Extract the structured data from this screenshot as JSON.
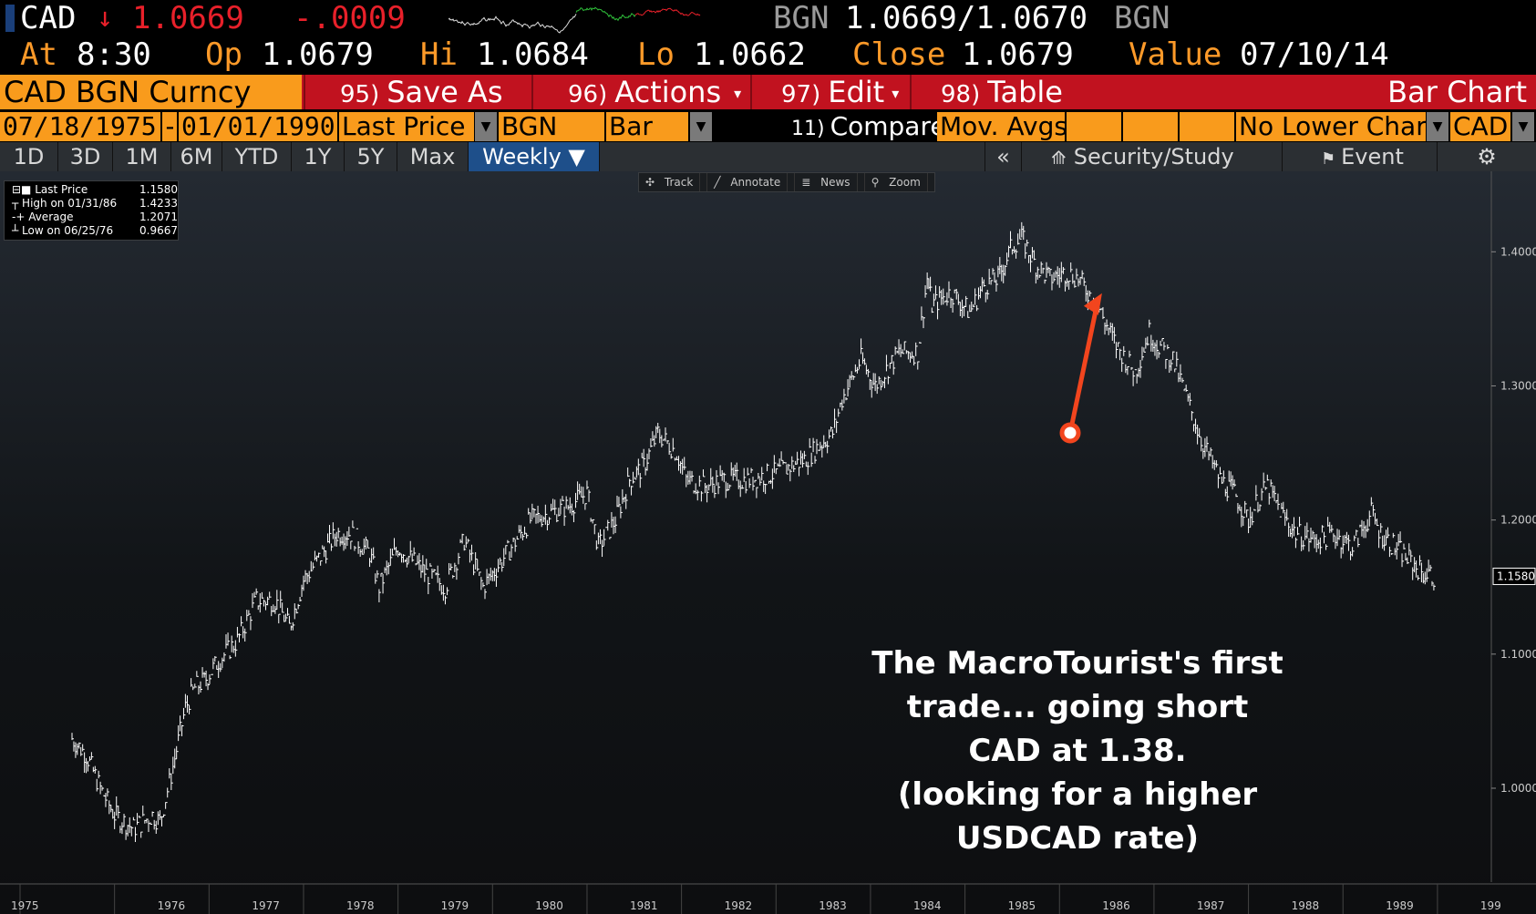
{
  "header": {
    "ticker": "CAD",
    "arrow": "↓",
    "price": "1.0669",
    "change": "-.0009",
    "source_left": "BGN",
    "bid_ask": "1.0669/1.0670",
    "source_right": "BGN"
  },
  "quote": {
    "at_label": "At",
    "at_value": "8:30",
    "open_label": "Op",
    "open_value": "1.0679",
    "high_label": "Hi",
    "high_value": "1.0684",
    "low_label": "Lo",
    "low_value": "1.0662",
    "close_label": "Close",
    "close_value": "1.0679",
    "value_label": "Value",
    "value_date": "07/10/14"
  },
  "commands": {
    "security": "CAD BGN Curncy",
    "save_num": "95)",
    "save_label": "Save As",
    "actions_num": "96)",
    "actions_label": "Actions",
    "edit_num": "97)",
    "edit_label": "Edit",
    "table_num": "98)",
    "table_label": "Table",
    "view_title": "Bar Chart"
  },
  "inputs": {
    "start_date": "07/18/1975",
    "end_date": "01/01/1990",
    "field": "Last Price",
    "source": "BGN",
    "style": "Bar",
    "compare_num": "11)",
    "compare_label": "Compare",
    "mov_avgs": "Mov. Avgs",
    "lower_chart": "No Lower Char",
    "currency": "CAD"
  },
  "periods": {
    "tabs": [
      "1D",
      "3D",
      "1M",
      "6M",
      "YTD",
      "1Y",
      "5Y",
      "Max",
      "Weekly ▼"
    ],
    "selected": "Weekly ▼",
    "collapse": "«",
    "security_study": "Security/Study",
    "event": "Event"
  },
  "toolbar": {
    "track": "Track",
    "annotate": "Annotate",
    "news": "News",
    "zoom": "Zoom"
  },
  "legend": {
    "last_label": "Last Price",
    "last_value": "1.1580",
    "high_label": "High on 01/31/86",
    "high_value": "1.4233",
    "avg_label": "Average",
    "avg_value": "1.2071",
    "low_label": "Low on 06/25/76",
    "low_value": "0.9667"
  },
  "annotation": {
    "lines": [
      "The MacroTourist's first",
      "trade...  going short",
      "CAD at 1.38.",
      "(looking for a higher",
      "USDCAD rate)"
    ]
  },
  "colors": {
    "orange": "#f99b1c",
    "red_bar": "#c1121f",
    "price_down": "#e8202a",
    "arrow": "#f2451e"
  },
  "chart_data": {
    "type": "line",
    "style": "bar (weekly OHLC)",
    "frequency": "weekly",
    "x_ticks": [
      "1975",
      "1976",
      "1977",
      "1978",
      "1979",
      "1980",
      "1981",
      "1982",
      "1983",
      "1984",
      "1985",
      "1986",
      "1987",
      "1988",
      "1989",
      "199"
    ],
    "y_ticks": [
      1.0,
      1.1,
      1.2,
      1.3,
      1.4
    ],
    "ylim": [
      0.93,
      1.46
    ],
    "last_price_label": "1.1580",
    "grid": false,
    "series": [
      {
        "x": [
          1975.55,
          1975.7,
          1975.85,
          1976.0,
          1976.2,
          1976.4,
          1976.48,
          1976.6,
          1976.75,
          1976.85,
          1976.95,
          1977.1,
          1977.3,
          1977.5,
          1977.7,
          1977.85,
          1978.0,
          1978.2,
          1978.35,
          1978.5,
          1978.7,
          1978.8,
          1979.0,
          1979.15,
          1979.3,
          1979.5,
          1979.7,
          1979.9,
          1980.0,
          1980.2,
          1980.4,
          1980.6,
          1980.8,
          1981.0,
          1981.12,
          1981.3,
          1981.45,
          1981.6,
          1981.75,
          1981.95,
          1982.05,
          1982.25,
          1982.45,
          1982.7,
          1983.0,
          1983.3,
          1983.6,
          1983.7,
          1983.9,
          1984.05,
          1984.15,
          1984.3,
          1984.5,
          1984.6,
          1984.65,
          1984.85,
          1985.05,
          1985.2,
          1985.35,
          1985.5,
          1985.6,
          1985.75,
          1985.9,
          1986.08,
          1986.2,
          1986.4,
          1986.6,
          1986.8,
          1986.95,
          1987.05,
          1987.2,
          1987.3,
          1987.5,
          1987.7,
          1987.85,
          1988.0,
          1988.1,
          1988.2,
          1988.35,
          1988.5,
          1988.7,
          1988.9,
          1989.1,
          1989.3,
          1989.4,
          1989.55,
          1989.7,
          1989.85,
          1989.98
        ],
        "values": [
          1.037,
          1.025,
          1.0,
          0.98,
          0.97,
          0.98,
          0.975,
          1.01,
          1.06,
          1.075,
          1.08,
          1.095,
          1.11,
          1.14,
          1.14,
          1.12,
          1.155,
          1.175,
          1.19,
          1.19,
          1.175,
          1.15,
          1.18,
          1.17,
          1.16,
          1.15,
          1.185,
          1.15,
          1.16,
          1.18,
          1.2,
          1.205,
          1.21,
          1.22,
          1.18,
          1.2,
          1.23,
          1.24,
          1.265,
          1.25,
          1.23,
          1.225,
          1.23,
          1.23,
          1.235,
          1.245,
          1.265,
          1.29,
          1.32,
          1.3,
          1.31,
          1.325,
          1.325,
          1.38,
          1.36,
          1.37,
          1.355,
          1.375,
          1.38,
          1.405,
          1.41,
          1.39,
          1.38,
          1.385,
          1.38,
          1.36,
          1.33,
          1.31,
          1.34,
          1.33,
          1.32,
          1.3,
          1.26,
          1.23,
          1.22,
          1.2,
          1.215,
          1.225,
          1.205,
          1.19,
          1.185,
          1.19,
          1.18,
          1.205,
          1.19,
          1.18,
          1.17,
          1.16,
          1.158
        ]
      }
    ],
    "annotation": {
      "text": "The MacroTourist's first trade...  going short CAD at 1.38. (looking for a higher USDCAD rate)",
      "arrow_points_to": [
        1986.45,
        1.38
      ]
    }
  }
}
